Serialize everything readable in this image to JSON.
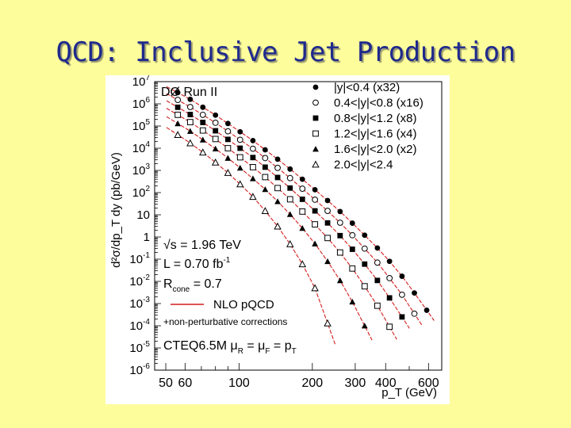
{
  "slide": {
    "title": "QCD: Inclusive Jet Production"
  },
  "chart_data": {
    "type": "scatter",
    "experiment": "DØ Run II",
    "ylabel": "d²σ/dp_T dy (pb/GeV)",
    "xlabel": "p_T (GeV)",
    "xscale": "log",
    "yscale": "log",
    "xlim": [
      45,
      680
    ],
    "ylim": [
      1e-06,
      10000000.0
    ],
    "x_ticks": [
      {
        "value": 50,
        "label": "50"
      },
      {
        "value": 60,
        "label": "60"
      },
      {
        "value": 100,
        "label": "100"
      },
      {
        "value": 200,
        "label": "200"
      },
      {
        "value": 300,
        "label": "300"
      },
      {
        "value": 400,
        "label": "400"
      },
      {
        "value": 600,
        "label": "600"
      }
    ],
    "y_ticks": [
      {
        "value": 10000000.0,
        "m": "10",
        "e": "7"
      },
      {
        "value": 1000000.0,
        "m": "10",
        "e": "6"
      },
      {
        "value": 100000.0,
        "m": "10",
        "e": "5"
      },
      {
        "value": 10000.0,
        "m": "10",
        "e": "4"
      },
      {
        "value": 1000.0,
        "m": "10",
        "e": "3"
      },
      {
        "value": 100.0,
        "m": "10",
        "e": "2"
      },
      {
        "value": 10,
        "m": "10",
        "e": ""
      },
      {
        "value": 1,
        "m": "1",
        "e": ""
      },
      {
        "value": 0.1,
        "m": "10",
        "e": "-1"
      },
      {
        "value": 0.01,
        "m": "10",
        "e": "-2"
      },
      {
        "value": 0.001,
        "m": "10",
        "e": "-3"
      },
      {
        "value": 0.0001,
        "m": "10",
        "e": "-4"
      },
      {
        "value": 1e-05,
        "m": "10",
        "e": "-5"
      },
      {
        "value": 1e-06,
        "m": "10",
        "e": "-6"
      }
    ],
    "series": [
      {
        "name": "|y|<0.4 (x32)",
        "marker": "filled-circle",
        "x": [
          56,
          63,
          71,
          80,
          90,
          101,
          114,
          128,
          144,
          162,
          182,
          205,
          231,
          260,
          292,
          328,
          370,
          415,
          467,
          525,
          590
        ],
        "y": [
          3200000.0,
          1600000.0,
          700000.0,
          310000.0,
          130000.0,
          55000.0,
          22000.0,
          8500.0,
          3200.0,
          1150.0,
          400,
          135,
          44,
          14,
          4.2,
          1.2,
          0.32,
          0.08,
          0.017,
          0.003,
          0.0005
        ]
      },
      {
        "name": "0.4<|y|<0.8 (x16)",
        "marker": "open-circle",
        "x": [
          56,
          63,
          71,
          80,
          90,
          101,
          114,
          128,
          144,
          162,
          182,
          205,
          231,
          260,
          292,
          328,
          370,
          415,
          467,
          525
        ],
        "y": [
          1500000.0,
          720000.0,
          320000.0,
          140000.0,
          58000.0,
          24000.0,
          9500.0,
          3600.0,
          1300.0,
          450,
          150,
          48,
          15,
          4.4,
          1.2,
          0.3,
          0.07,
          0.014,
          0.0025,
          0.00035
        ]
      },
      {
        "name": "0.8<|y|<1.2 (x8)",
        "marker": "filled-square",
        "x": [
          56,
          63,
          71,
          80,
          90,
          101,
          114,
          128,
          144,
          162,
          182,
          205,
          231,
          260,
          292,
          328,
          370,
          415,
          467
        ],
        "y": [
          700000.0,
          330000.0,
          145000.0,
          61000.0,
          25000.0,
          10000.0,
          3800.0,
          1400.0,
          480,
          160,
          50,
          15,
          4.3,
          1.15,
          0.28,
          0.06,
          0.011,
          0.0018,
          0.00025
        ]
      },
      {
        "name": "1.2<|y|<1.6 (x4)",
        "marker": "open-square",
        "x": [
          56,
          63,
          71,
          80,
          90,
          101,
          114,
          128,
          144,
          162,
          182,
          205,
          231,
          260,
          292,
          328,
          370,
          415
        ],
        "y": [
          320000.0,
          150000.0,
          63000.0,
          26000.0,
          10000.0,
          3900.0,
          1400.0,
          500,
          160,
          50,
          14,
          3.7,
          0.9,
          0.2,
          0.038,
          0.006,
          0.0008,
          9e-05
        ]
      },
      {
        "name": "1.6<|y|<2.0 (x2)",
        "marker": "filled-triangle",
        "x": [
          56,
          63,
          71,
          80,
          90,
          101,
          114,
          128,
          144,
          162,
          182,
          205,
          231,
          260,
          292,
          328
        ],
        "y": [
          130000.0,
          59000.0,
          24000.0,
          9500.0,
          3600.0,
          1300.0,
          430,
          140,
          40,
          10.5,
          2.5,
          0.5,
          0.08,
          0.011,
          0.0012,
          0.0001
        ]
      },
      {
        "name": "2.0<|y|<2.4",
        "marker": "open-triangle",
        "x": [
          56,
          63,
          71,
          80,
          90,
          101,
          114,
          128,
          144,
          162,
          182,
          205,
          231
        ],
        "y": [
          40000.0,
          17000.0,
          6500.0,
          2300.0,
          780,
          240,
          65,
          15,
          3.0,
          0.48,
          0.06,
          0.005,
          0.00013
        ]
      }
    ],
    "info_text": [
      {
        "key": "s",
        "pre": "",
        "sub": "",
        "sup": "",
        "post": "√s = 1.96 TeV"
      },
      {
        "key": "L",
        "pre": "L = 0.70 fb",
        "sub": "",
        "sup": "-1",
        "post": ""
      },
      {
        "key": "R",
        "pre": "R",
        "sub": "cone",
        "sup": "",
        "post": " = 0.7"
      }
    ],
    "theory_legend": {
      "label": "NLO pQCD",
      "note": "+non-perturbative corrections"
    },
    "pdf_text": {
      "pdf": "CTEQ6.5M",
      "mu": "μ",
      "r": "R",
      "eq": " = μ",
      "f": "F",
      "eq2": " = p",
      "t": "T"
    },
    "colors": {
      "data": "#000000",
      "theory": "#d41c1c",
      "background": "#ffffff",
      "slide": "#fdfd9c",
      "title": "#1f2a8c"
    }
  }
}
